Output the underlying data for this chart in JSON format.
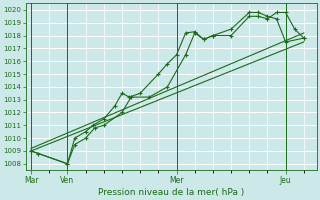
{
  "title": "",
  "xlabel": "Pression niveau de la mer( hPa )",
  "ylim": [
    1007.5,
    1020.5
  ],
  "yticks": [
    1008,
    1009,
    1010,
    1011,
    1012,
    1013,
    1014,
    1015,
    1016,
    1017,
    1018,
    1019,
    1020
  ],
  "xlim": [
    -0.15,
    7.85
  ],
  "bg_color": "#cce8e8",
  "grid_color": "#ffffff",
  "line_color": "#1a6b1a",
  "day_lines": [
    0.0,
    1.0,
    4.0,
    7.0
  ],
  "day_labels": [
    "Mar",
    "Ven",
    "Mer",
    "Jeu"
  ],
  "series": [
    [
      0.0,
      1009.0,
      0.2,
      1008.8,
      1.0,
      1008.0,
      1.2,
      1010.0,
      1.5,
      1010.5,
      1.7,
      1011.0,
      2.0,
      1011.5,
      2.3,
      1012.5,
      2.5,
      1013.5,
      2.7,
      1013.2,
      3.0,
      1013.5,
      3.5,
      1015.0,
      3.75,
      1015.8,
      4.0,
      1016.5,
      4.25,
      1018.2,
      4.5,
      1018.3,
      4.75,
      1017.7,
      5.0,
      1018.0,
      5.5,
      1018.0,
      6.0,
      1019.5,
      6.25,
      1019.5,
      6.5,
      1019.3,
      6.75,
      1019.8,
      7.0,
      1019.8,
      7.25,
      1018.5,
      7.5,
      1017.8
    ],
    [
      0.0,
      1009.0,
      1.0,
      1008.0,
      1.2,
      1009.5,
      1.5,
      1010.0,
      1.75,
      1010.8,
      2.0,
      1011.0,
      2.5,
      1012.0,
      2.75,
      1013.2,
      3.25,
      1013.2,
      3.75,
      1014.0,
      4.25,
      1016.5,
      4.5,
      1018.2,
      4.75,
      1017.7,
      5.0,
      1018.0,
      5.5,
      1018.5,
      6.0,
      1019.8,
      6.25,
      1019.8,
      6.5,
      1019.5,
      6.75,
      1019.3,
      7.0,
      1017.5,
      7.5,
      1017.8
    ],
    [
      0.0,
      1009.0,
      7.5,
      1017.5
    ],
    [
      0.0,
      1009.2,
      7.5,
      1018.2
    ]
  ],
  "ytick_fontsize": 5.0,
  "xtick_fontsize": 5.5,
  "xlabel_fontsize": 6.5
}
